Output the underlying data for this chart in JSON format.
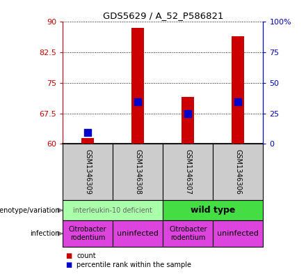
{
  "title": "GDS5629 / A_52_P586821",
  "samples": [
    "GSM1346309",
    "GSM1346308",
    "GSM1346307",
    "GSM1346306"
  ],
  "count_values": [
    61.5,
    88.5,
    71.5,
    86.5
  ],
  "percentile_values": [
    62.8,
    70.3,
    67.5,
    70.3
  ],
  "ylim": [
    60,
    90
  ],
  "yticks": [
    60,
    67.5,
    75,
    82.5,
    90
  ],
  "ytick_labels": [
    "60",
    "67.5",
    "75",
    "82.5",
    "90"
  ],
  "y2ticks": [
    0,
    25,
    50,
    75,
    100
  ],
  "y2tick_labels": [
    "0",
    "25",
    "50",
    "75",
    "100%"
  ],
  "left_axis_color": "#cc0000",
  "right_axis_color": "#0000cc",
  "bar_color": "#cc0000",
  "dot_color": "#0000cc",
  "bar_width": 0.25,
  "dot_size": 45,
  "genotype_groups": [
    {
      "span": [
        0,
        1
      ],
      "text": "interleukin-10 deficient",
      "color": "#aaffaa",
      "fontsize": 7,
      "bold": false,
      "text_color": "#666666"
    },
    {
      "span": [
        2,
        3
      ],
      "text": "wild type",
      "color": "#44dd44",
      "fontsize": 9,
      "bold": true,
      "text_color": "#000000"
    }
  ],
  "infection_groups": [
    {
      "span": [
        0
      ],
      "text": "Citrobacter\nrodentium",
      "color": "#dd44dd",
      "fontsize": 7
    },
    {
      "span": [
        1
      ],
      "text": "uninfected",
      "color": "#dd44dd",
      "fontsize": 8
    },
    {
      "span": [
        2
      ],
      "text": "Citrobacter\nrodentium",
      "color": "#dd44dd",
      "fontsize": 7
    },
    {
      "span": [
        3
      ],
      "text": "uninfected",
      "color": "#dd44dd",
      "fontsize": 8
    }
  ],
  "legend_items": [
    {
      "color": "#cc0000",
      "label": "count"
    },
    {
      "color": "#0000cc",
      "label": "percentile rank within the sample"
    }
  ],
  "sample_bg_color": "#cccccc",
  "grid_linestyle": ":"
}
